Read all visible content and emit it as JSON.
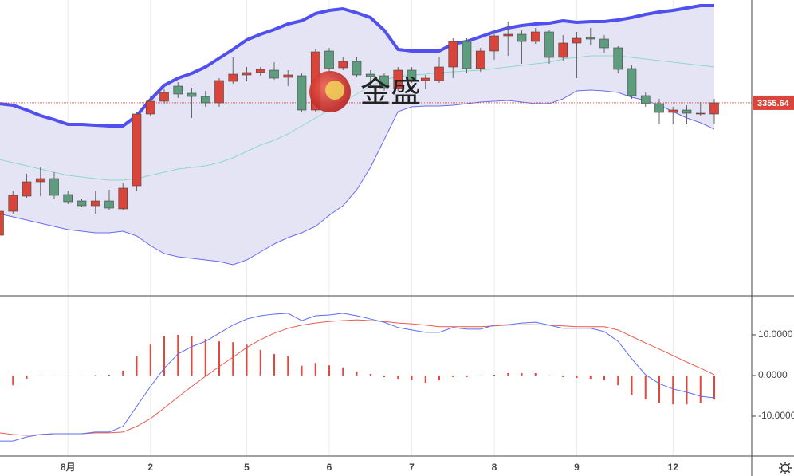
{
  "chart_data": [
    {
      "type": "candlestick",
      "watermark": "金盛",
      "categories": [
        null,
        null,
        null,
        null,
        null,
        "8月",
        null,
        null,
        null,
        null,
        null,
        "2",
        null,
        null,
        null,
        null,
        null,
        null,
        "5",
        null,
        null,
        null,
        null,
        null,
        "6",
        null,
        null,
        null,
        null,
        null,
        "7",
        null,
        null,
        null,
        null,
        null,
        "8",
        null,
        null,
        null,
        null,
        null,
        "9",
        null,
        null,
        null,
        null,
        null,
        null,
        "12",
        null,
        null,
        null
      ],
      "open": [
        3256.0,
        3274.0,
        3285.4,
        3296.2,
        3298.6,
        3286.6,
        3281.8,
        3278.2,
        3281.8,
        3275.8,
        3293.2,
        3347.2,
        3356.8,
        3368.2,
        3362.8,
        3360.4,
        3355.6,
        3371.8,
        3376.6,
        3378.4,
        3380.2,
        3374.8,
        3376.0,
        3350.2,
        3394.6,
        3382.0,
        3386.8,
        3377.2,
        3376.0,
        3366.4,
        3380.2,
        3372.4,
        3372.4,
        3382.6,
        3401.8,
        3381.4,
        3394.6,
        3406.0,
        3407.2,
        3401.8,
        3409.0,
        3389.8,
        3400.6,
        3404.8,
        3403.6,
        3397.0,
        3381.4,
        3361.0,
        3355.0,
        3348.4,
        3350.2,
        3347.2,
        3347.2
      ],
      "high": [
        3278.2,
        3289.0,
        3302.2,
        3307.0,
        3303.4,
        3289.0,
        3283.6,
        3289.0,
        3290.2,
        3295.0,
        3349.0,
        3361.0,
        3365.8,
        3371.2,
        3367.0,
        3364.6,
        3374.2,
        3389.8,
        3382.6,
        3382.6,
        3386.2,
        3380.2,
        3377.8,
        3395.8,
        3397.0,
        3389.8,
        3389.8,
        3380.2,
        3377.8,
        3382.6,
        3382.6,
        3376.6,
        3389.8,
        3404.2,
        3404.2,
        3397.0,
        3410.2,
        3416.8,
        3410.2,
        3412.0,
        3410.2,
        3406.6,
        3409.0,
        3412.0,
        3406.6,
        3398.2,
        3383.8,
        3363.4,
        3358.6,
        3352.6,
        3353.8,
        3356.2,
        3358.6
      ],
      "low": [
        3254.2,
        3272.2,
        3284.2,
        3285.4,
        3283.0,
        3279.4,
        3277.0,
        3272.2,
        3274.6,
        3274.6,
        3289.0,
        3345.4,
        3355.0,
        3359.2,
        3344.2,
        3352.6,
        3352.6,
        3370.0,
        3371.8,
        3376.0,
        3373.0,
        3368.2,
        3349.0,
        3349.0,
        3379.0,
        3380.2,
        3374.8,
        3368.2,
        3364.6,
        3364.6,
        3370.6,
        3365.8,
        3370.6,
        3374.2,
        3377.8,
        3379.0,
        3388.0,
        3391.0,
        3385.0,
        3400.0,
        3385.0,
        3387.4,
        3374.2,
        3399.4,
        3393.4,
        3377.8,
        3358.6,
        3352.6,
        3339.4,
        3339.4,
        3339.4,
        3346.0,
        3340.0
      ],
      "close": [
        3274.0,
        3286.0,
        3296.2,
        3298.6,
        3286.0,
        3281.2,
        3278.2,
        3281.8,
        3276.4,
        3291.4,
        3347.2,
        3356.8,
        3363.4,
        3362.2,
        3360.4,
        3355.6,
        3372.4,
        3377.2,
        3378.4,
        3380.8,
        3374.2,
        3376.6,
        3350.2,
        3394.0,
        3381.4,
        3386.8,
        3376.6,
        3375.4,
        3367.0,
        3380.2,
        3373.0,
        3374.2,
        3382.6,
        3401.8,
        3381.4,
        3394.6,
        3406.0,
        3407.2,
        3401.8,
        3409.0,
        3389.8,
        3400.6,
        3404.2,
        3403.6,
        3397.0,
        3380.8,
        3361.0,
        3355.0,
        3348.4,
        3350.2,
        3347.8,
        3347.8,
        3355.64
      ],
      "up_color": "#d9453a",
      "down_color": "#5e9c7e",
      "bands": {
        "upper": [
          3355.0,
          3353.8,
          3350.2,
          3346.0,
          3343.0,
          3339.4,
          3339.4,
          3338.8,
          3338.2,
          3338.2,
          3346.0,
          3358.0,
          3368.8,
          3374.2,
          3377.8,
          3382.6,
          3389.2,
          3395.8,
          3403.0,
          3407.2,
          3410.8,
          3415.0,
          3417.4,
          3422.8,
          3425.2,
          3426.4,
          3423.4,
          3419.8,
          3410.2,
          3395.8,
          3394.6,
          3394.6,
          3394.6,
          3400.0,
          3401.8,
          3405.4,
          3409.0,
          3412.0,
          3413.8,
          3415.0,
          3415.6,
          3417.4,
          3416.2,
          3416.8,
          3416.8,
          3418.0,
          3419.8,
          3422.2,
          3424.0,
          3425.2,
          3427.0,
          3428.8,
          3428.8
        ],
        "middle": [
          3313.0,
          3310.6,
          3308.2,
          3305.8,
          3303.4,
          3301.0,
          3299.8,
          3298.6,
          3297.4,
          3297.4,
          3298.6,
          3301.0,
          3303.4,
          3305.8,
          3307.0,
          3308.2,
          3310.6,
          3314.2,
          3319.0,
          3323.8,
          3327.4,
          3332.2,
          3338.2,
          3344.2,
          3350.2,
          3356.2,
          3362.2,
          3368.2,
          3373.0,
          3375.4,
          3376.6,
          3377.2,
          3378.4,
          3379.0,
          3379.6,
          3380.2,
          3381.4,
          3382.6,
          3383.8,
          3385.0,
          3386.2,
          3388.6,
          3389.8,
          3391.0,
          3391.0,
          3391.0,
          3389.8,
          3388.6,
          3387.4,
          3386.2,
          3385.0,
          3383.8,
          3382.6
        ],
        "lower": [
          3272.2,
          3269.8,
          3267.4,
          3265.0,
          3262.6,
          3260.2,
          3259.0,
          3257.8,
          3257.8,
          3259.0,
          3255.4,
          3248.2,
          3242.2,
          3239.8,
          3238.6,
          3237.4,
          3236.2,
          3233.8,
          3237.4,
          3243.4,
          3249.4,
          3254.2,
          3257.8,
          3262.6,
          3271.0,
          3278.2,
          3290.2,
          3307.0,
          3328.0,
          3349.0,
          3352.6,
          3353.2,
          3353.2,
          3353.8,
          3355.0,
          3356.2,
          3356.8,
          3357.4,
          3356.2,
          3355.0,
          3355.0,
          3358.6,
          3364.6,
          3365.2,
          3364.6,
          3363.4,
          3359.8,
          3357.4,
          3353.8,
          3349.0,
          3344.2,
          3340.6,
          3335.8
        ],
        "upper_color": "#5050ee",
        "middle_color": "#8fd8c8",
        "lower_color": "#6a6af0",
        "fill": "#e4e4f4"
      },
      "ylim": [
        3211,
        3433
      ],
      "last_price": 3355.64,
      "grid": true
    },
    {
      "type": "macd",
      "macd": [
        -16.1,
        -16.1,
        -15.1,
        -14.5,
        -14.3,
        -14.3,
        -14.3,
        -13.9,
        -13.9,
        -12.5,
        -7.6,
        -2.7,
        1.8,
        5.3,
        7.1,
        8.4,
        10.4,
        12.4,
        13.9,
        14.7,
        15.1,
        15.3,
        13.5,
        14.7,
        14.9,
        15.3,
        14.7,
        13.9,
        13.1,
        11.8,
        11.2,
        10.6,
        10.6,
        11.8,
        11.4,
        11.4,
        12.4,
        12.5,
        12.9,
        13.1,
        12.4,
        11.6,
        11.6,
        11.6,
        10.8,
        8.4,
        4.1,
        0.2,
        -2.0,
        -3.3,
        -4.1,
        -5.1,
        -5.5
      ],
      "signal": [
        -14.1,
        -14.5,
        -14.7,
        -14.5,
        -14.3,
        -14.3,
        -14.3,
        -14.1,
        -14.1,
        -13.9,
        -12.5,
        -10.6,
        -8.0,
        -5.3,
        -2.7,
        -0.2,
        2.2,
        4.5,
        6.9,
        8.8,
        10.4,
        11.6,
        12.4,
        12.9,
        13.3,
        13.5,
        13.7,
        13.5,
        13.3,
        12.9,
        12.7,
        12.4,
        12.0,
        12.0,
        12.0,
        12.0,
        12.2,
        12.4,
        12.5,
        12.5,
        12.4,
        12.2,
        12.0,
        12.0,
        12.0,
        11.2,
        9.6,
        8.0,
        6.5,
        4.9,
        3.3,
        1.8,
        0.2
      ],
      "histogram": [
        -1.2,
        -2.4,
        -0.8,
        -0.2,
        -0.2,
        -0.1,
        0,
        0.1,
        0.2,
        1.2,
        4.7,
        7.6,
        9.6,
        10,
        9.6,
        9.0,
        8.4,
        8.2,
        7.6,
        6.3,
        5.3,
        4.7,
        2.4,
        3.1,
        2.5,
        2.0,
        1.0,
        0.4,
        -0.4,
        -0.8,
        -1.0,
        -1.8,
        -1.2,
        -0.4,
        -0.4,
        -0.2,
        0.2,
        0.6,
        0.6,
        0.6,
        -0.2,
        -0.4,
        -0.6,
        -0.8,
        -1.2,
        -2.4,
        -4.7,
        -5.9,
        -6.7,
        -7.1,
        -7.1,
        -6.7,
        -5.9
      ],
      "macd_color": "#5c6cf0",
      "signal_color": "#ea5a4e",
      "histogram_color": "#e8453c",
      "ylim": [
        -19.8,
        19.4
      ],
      "yticks": [
        {
          "value": 10,
          "label": "10.0000"
        },
        {
          "value": 0,
          "label": "0.0000"
        },
        {
          "value": -10,
          "label": "-10.0000"
        }
      ]
    }
  ]
}
